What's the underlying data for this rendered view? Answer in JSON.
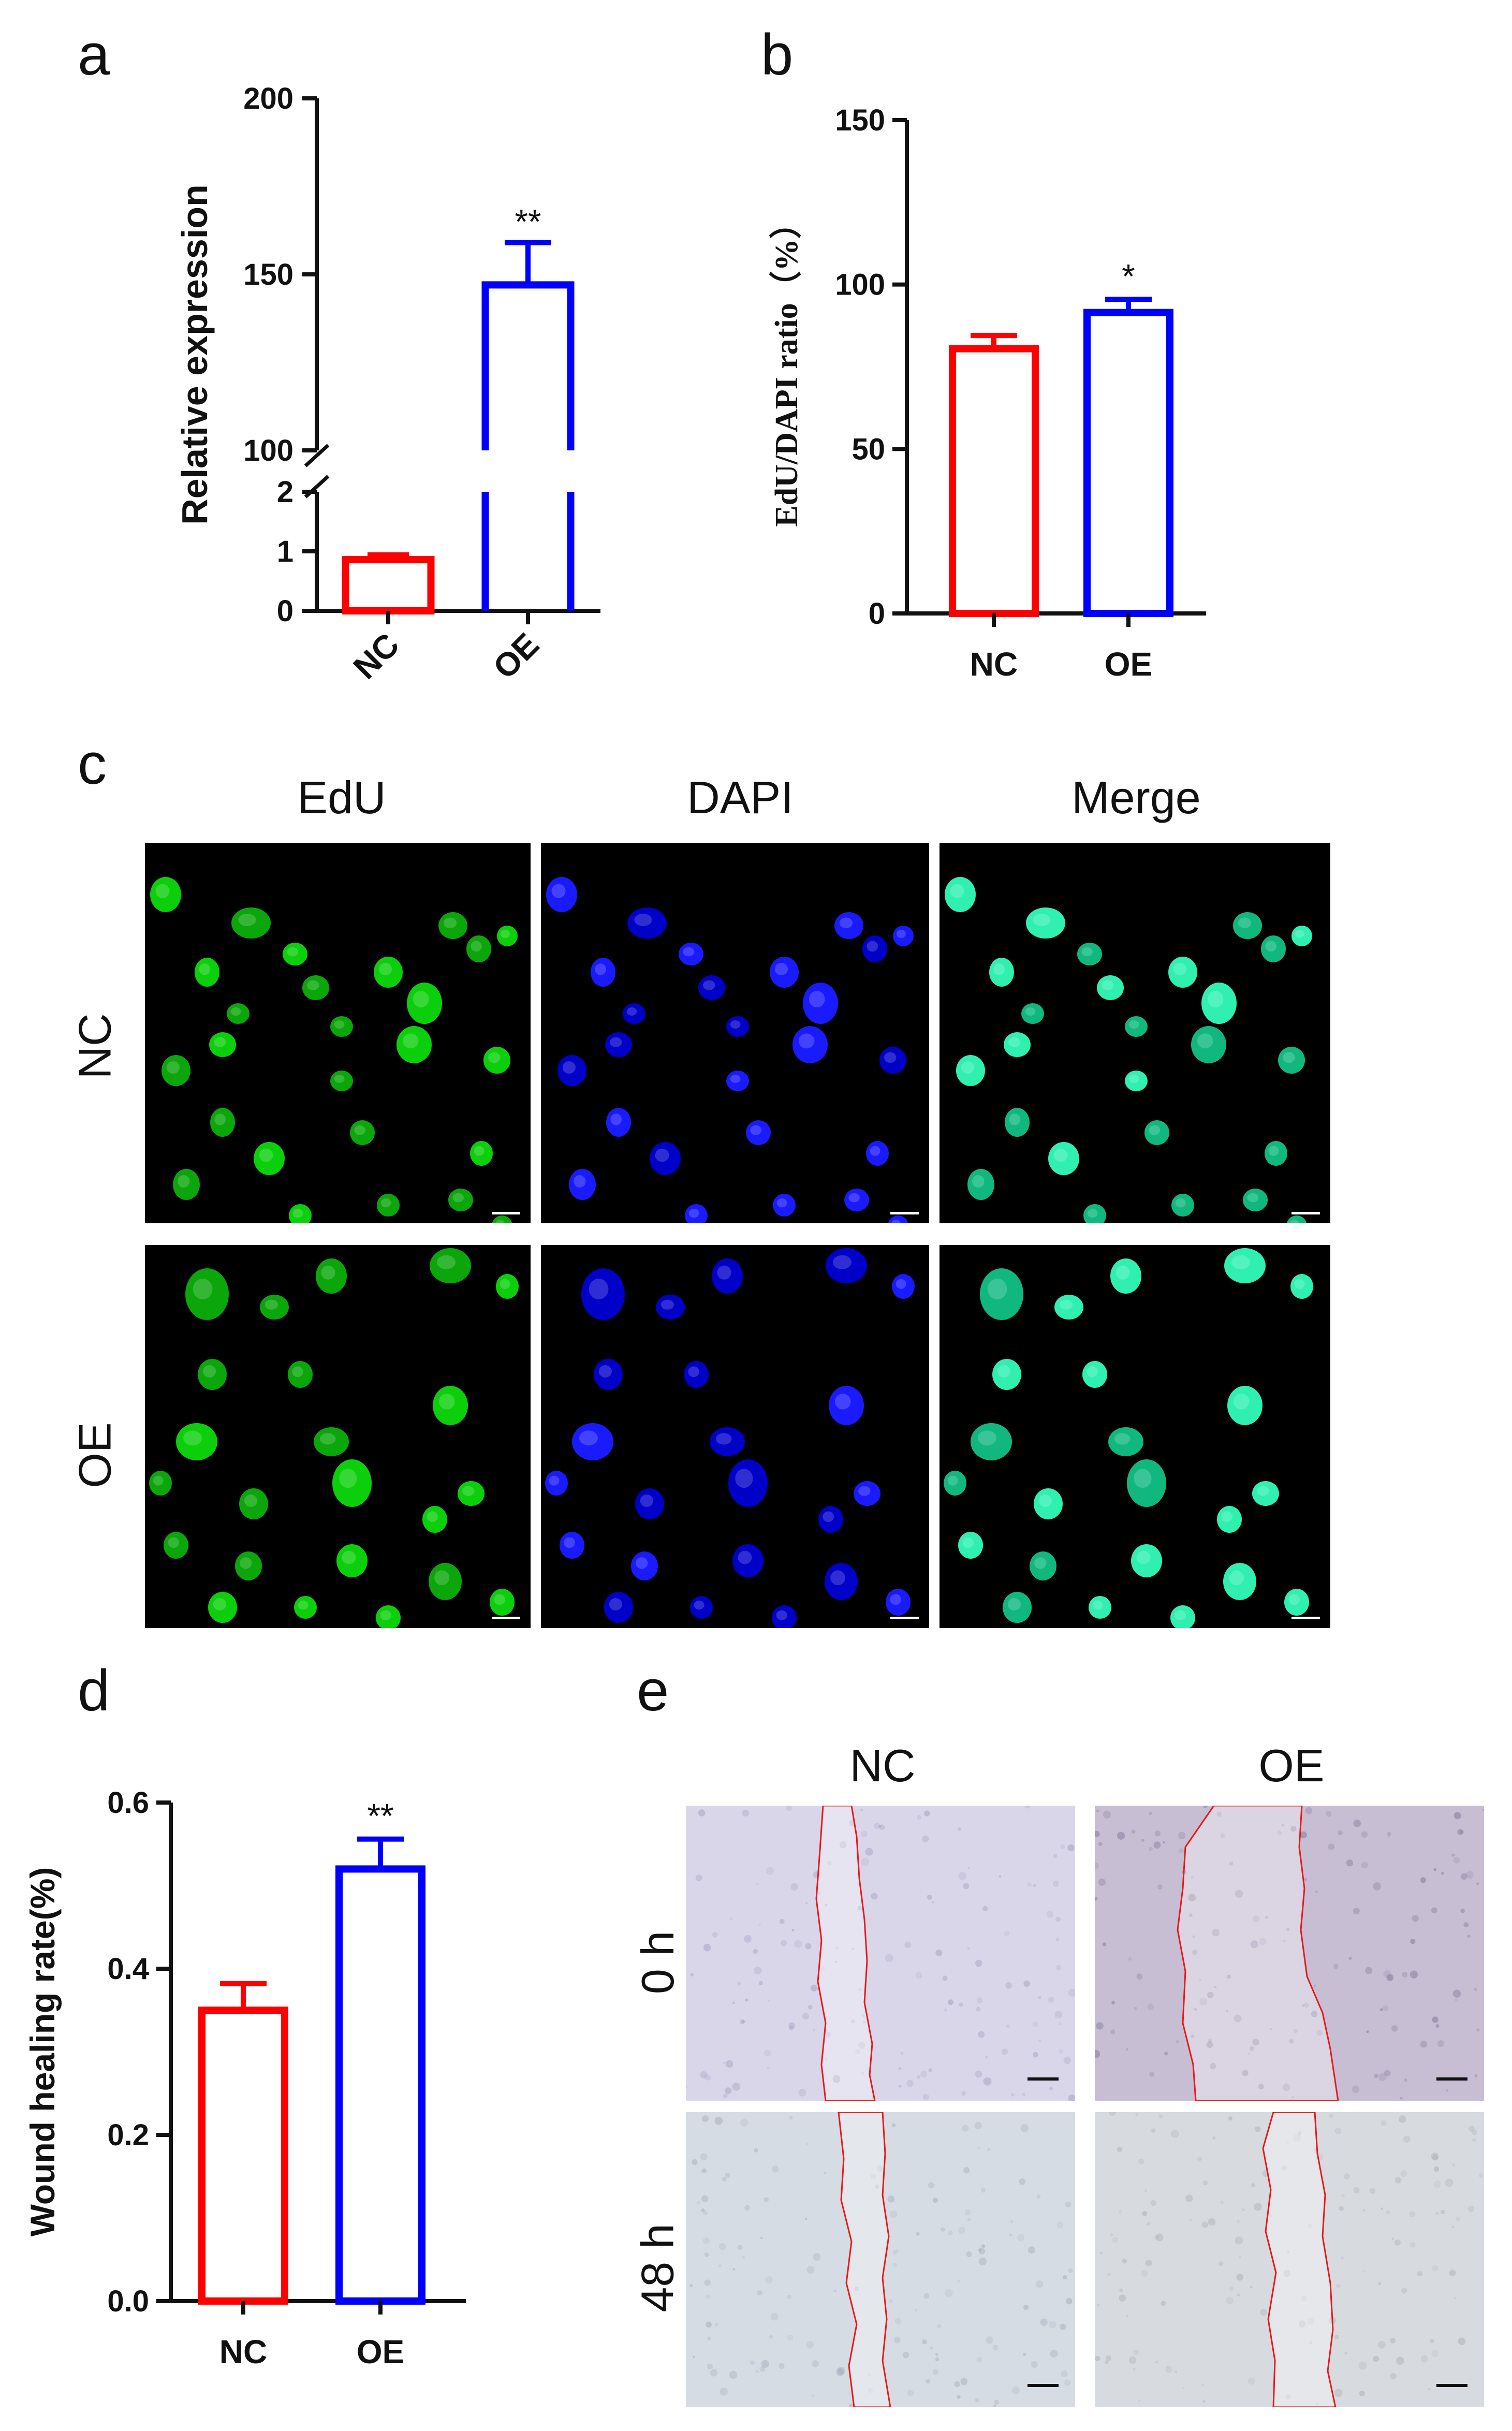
{
  "panels": {
    "a": "a",
    "b": "b",
    "c": "c",
    "d": "d",
    "e": "e"
  },
  "chart_data": [
    {
      "panel": "a",
      "type": "bar",
      "categories": [
        "NC",
        "OE"
      ],
      "values": [
        0.86,
        147
      ],
      "errors": [
        0.08,
        12
      ],
      "significance": [
        "",
        "**"
      ],
      "ylabel": "Relative expression",
      "xlabel": "",
      "axis_break": true,
      "yticks_lower": [
        0,
        1,
        2
      ],
      "yticks_upper": [
        100,
        150,
        200
      ],
      "ylim_lower": [
        0,
        2
      ],
      "ylim_upper": [
        100,
        200
      ],
      "colors": [
        "#ff0000",
        "#0000ff"
      ],
      "xticklabels_rotated": true
    },
    {
      "panel": "b",
      "type": "bar",
      "categories": [
        "NC",
        "OE"
      ],
      "values": [
        80.5,
        91.5
      ],
      "errors": [
        4,
        4
      ],
      "significance": [
        "",
        "*"
      ],
      "ylabel": "EdU/DAPI ratio（%）",
      "xlabel": "",
      "yticks": [
        0,
        50,
        100,
        150
      ],
      "ylim": [
        0,
        150
      ],
      "colors": [
        "#ff0000",
        "#0000ff"
      ]
    },
    {
      "panel": "d",
      "type": "bar",
      "categories": [
        "NC",
        "OE"
      ],
      "values": [
        0.35,
        0.52
      ],
      "errors": [
        0.032,
        0.036
      ],
      "significance": [
        "",
        "**"
      ],
      "ylabel": "Wound healing rate(%)",
      "xlabel": "",
      "yticks": [
        "0.0",
        "0.2",
        "0.4",
        "0.6"
      ],
      "ylim": [
        0,
        0.6
      ],
      "colors": [
        "#ff0000",
        "#0000ff"
      ]
    }
  ],
  "panel_c": {
    "columns": [
      "EdU",
      "DAPI",
      "Merge"
    ],
    "rows": [
      "NC",
      "OE"
    ]
  },
  "panel_e": {
    "columns": [
      "NC",
      "OE"
    ],
    "rows": [
      "0 h",
      "48 h"
    ]
  }
}
